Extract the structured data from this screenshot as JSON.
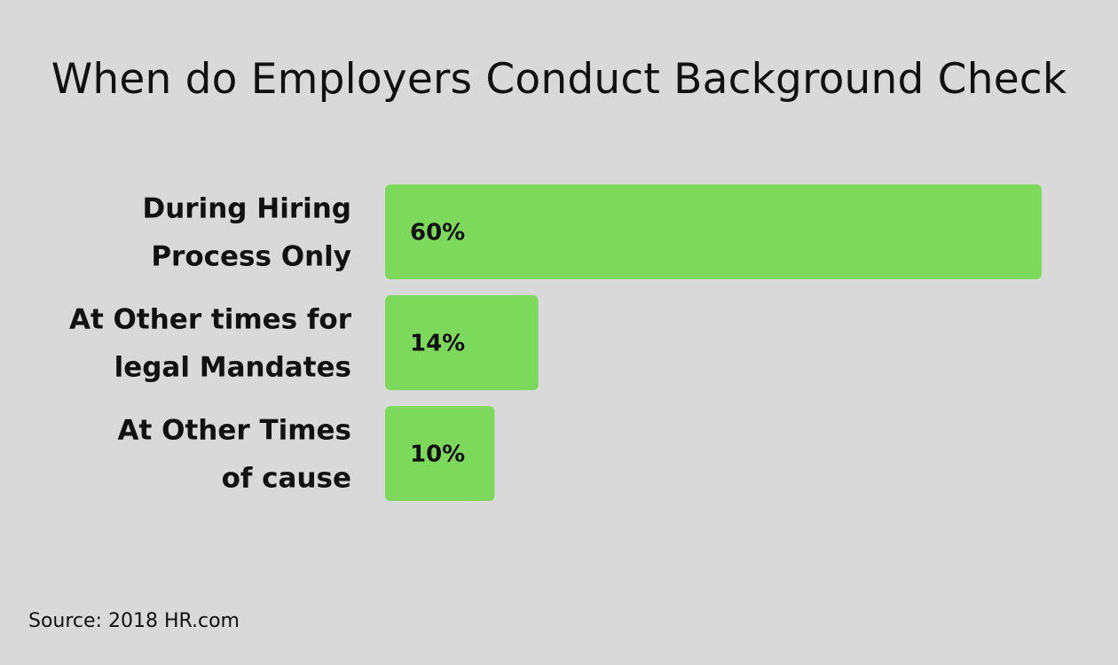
{
  "chart_data": {
    "type": "bar",
    "orientation": "horizontal",
    "title": "When do Employers Conduct Background Check",
    "categories": [
      [
        "During Hiring",
        "Process Only"
      ],
      [
        "At Other times for",
        "legal Mandates"
      ],
      [
        "At Other Times",
        "of cause"
      ]
    ],
    "values": [
      60,
      14,
      10
    ],
    "data_labels": [
      "60%",
      "14%",
      "10%"
    ],
    "value_unit": "%",
    "xlim": [
      0,
      60
    ],
    "grid": false,
    "bar_color": "#7dd95b",
    "background_color": "#d9d9d9"
  },
  "source": "Source: 2018 HR.com"
}
